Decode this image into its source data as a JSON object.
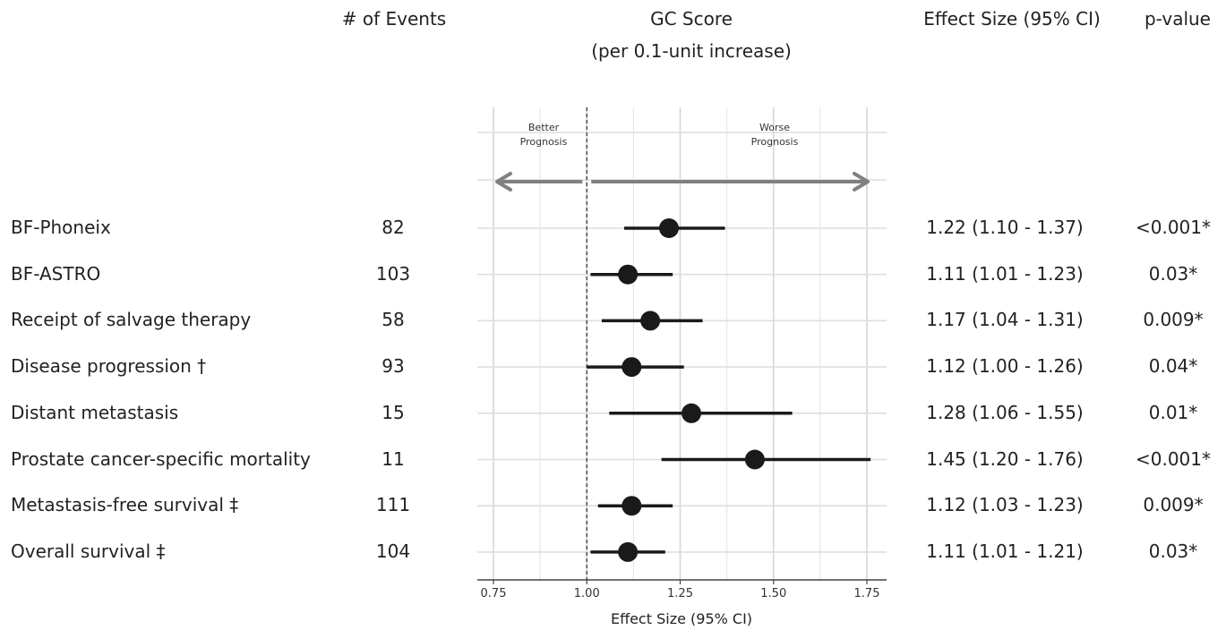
{
  "headers": {
    "events": "# of Events",
    "gc_title": "GC Score",
    "gc_subtitle": "(per 0.1-unit increase)",
    "effect": "Effect Size (95% CI)",
    "pvalue": "p-value"
  },
  "annotations": {
    "better_1": "Better",
    "better_2": "Prognosis",
    "worse_1": "Worse",
    "worse_2": "Prognosis"
  },
  "chart_data": {
    "type": "forest",
    "xlabel": "Effect Size (95% CI)",
    "xlim": [
      0.7,
      1.8
    ],
    "xticks": [
      "0.75",
      "1.00",
      "1.25",
      "1.50",
      "1.75"
    ],
    "reference_line": 1.0,
    "grid": true,
    "rows": [
      {
        "label": "BF-Phoneix",
        "events": "82",
        "estimate": 1.22,
        "lower": 1.1,
        "upper": 1.37,
        "effect_text": "1.22 (1.10 - 1.37)",
        "p": "<0.001*"
      },
      {
        "label": "BF-ASTRO",
        "events": "103",
        "estimate": 1.11,
        "lower": 1.01,
        "upper": 1.23,
        "effect_text": "1.11 (1.01 - 1.23)",
        "p": "0.03*"
      },
      {
        "label": "Receipt of salvage therapy",
        "events": "58",
        "estimate": 1.17,
        "lower": 1.04,
        "upper": 1.31,
        "effect_text": "1.17 (1.04 - 1.31)",
        "p": "0.009*"
      },
      {
        "label": "Disease progression †",
        "events": "93",
        "estimate": 1.12,
        "lower": 1.0,
        "upper": 1.26,
        "effect_text": "1.12 (1.00 - 1.26)",
        "p": "0.04*"
      },
      {
        "label": "Distant metastasis",
        "events": "15",
        "estimate": 1.28,
        "lower": 1.06,
        "upper": 1.55,
        "effect_text": "1.28 (1.06 - 1.55)",
        "p": "0.01*"
      },
      {
        "label": "Prostate cancer-specific mortality",
        "events": "11",
        "estimate": 1.45,
        "lower": 1.2,
        "upper": 1.76,
        "effect_text": "1.45 (1.20 - 1.76)",
        "p": "<0.001*"
      },
      {
        "label": "Metastasis-free survival ‡",
        "events": "111",
        "estimate": 1.12,
        "lower": 1.03,
        "upper": 1.23,
        "effect_text": "1.12 (1.03 - 1.23)",
        "p": "0.009*"
      },
      {
        "label": "Overall survival ‡",
        "events": "104",
        "estimate": 1.11,
        "lower": 1.01,
        "upper": 1.21,
        "effect_text": "1.11 (1.01 - 1.21)",
        "p": "0.03*"
      }
    ]
  }
}
